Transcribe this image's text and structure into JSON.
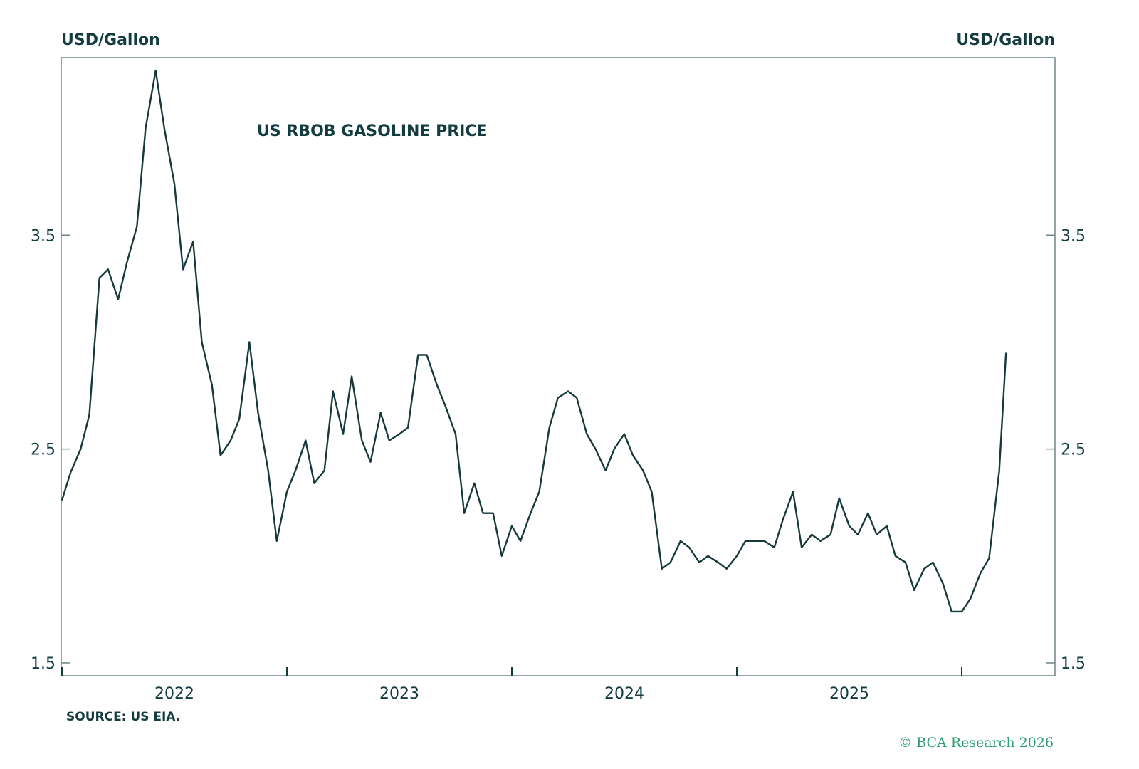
{
  "footer": {
    "source": "SOURCE: US EIA.",
    "copyright": "© BCA Research 2026"
  },
  "chart_data": {
    "type": "line",
    "title": "US RBOB GASOLINE PRICE",
    "ylabel_left": "USD/Gallon",
    "ylabel_right": "USD/Gallon",
    "xlabel": "",
    "ylim": [
      1.44,
      4.33
    ],
    "yticks": [
      1.5,
      2.5,
      3.5
    ],
    "ytick_labels": [
      "1.5",
      "2.5",
      "3.5"
    ],
    "xticks": [
      "2022",
      "2023",
      "2024",
      "2025"
    ],
    "grid": false,
    "line_color": "#163a3c",
    "series": [
      {
        "dates": [
          "2022-01-01",
          "2022-01-15",
          "2022-02-01",
          "2022-02-15",
          "2022-03-01",
          "2022-03-15",
          "2022-04-01",
          "2022-04-15",
          "2022-05-01",
          "2022-05-15",
          "2022-06-01",
          "2022-06-15",
          "2022-07-01",
          "2022-07-15",
          "2022-08-01",
          "2022-08-15",
          "2022-09-01",
          "2022-09-15",
          "2022-10-01",
          "2022-10-15",
          "2022-11-01",
          "2022-11-15",
          "2022-12-01",
          "2022-12-15",
          "2023-01-01",
          "2023-01-15",
          "2023-02-01",
          "2023-02-15",
          "2023-03-01",
          "2023-03-15",
          "2023-04-01",
          "2023-04-15",
          "2023-05-01",
          "2023-05-15",
          "2023-06-01",
          "2023-06-15",
          "2023-07-01",
          "2023-07-15",
          "2023-08-01",
          "2023-08-15",
          "2023-09-01",
          "2023-09-15",
          "2023-10-01",
          "2023-10-15",
          "2023-11-01",
          "2023-11-15",
          "2023-12-01",
          "2023-12-15",
          "2024-01-01",
          "2024-01-15",
          "2024-02-01",
          "2024-02-15",
          "2024-03-01",
          "2024-03-15",
          "2024-04-01",
          "2024-04-15",
          "2024-05-01",
          "2024-05-15",
          "2024-06-01",
          "2024-06-15",
          "2024-07-01",
          "2024-07-15",
          "2024-08-01",
          "2024-08-15",
          "2024-09-01",
          "2024-09-15",
          "2024-10-01",
          "2024-10-15",
          "2024-11-01",
          "2024-11-15",
          "2024-12-01",
          "2024-12-15",
          "2025-01-01",
          "2025-01-15",
          "2025-02-01",
          "2025-02-15",
          "2025-03-01",
          "2025-03-15",
          "2025-04-01",
          "2025-04-15",
          "2025-05-01",
          "2025-05-15",
          "2025-06-01",
          "2025-06-15",
          "2025-07-01",
          "2025-07-15",
          "2025-08-01",
          "2025-08-15",
          "2025-09-01",
          "2025-09-15",
          "2025-10-01",
          "2025-10-15",
          "2025-11-01",
          "2025-11-15",
          "2025-12-01",
          "2025-12-15",
          "2026-01-01",
          "2026-01-15",
          "2026-02-01",
          "2026-02-15",
          "2026-03-01",
          "2026-03-12"
        ],
        "values": [
          2.26,
          2.39,
          2.5,
          2.66,
          3.3,
          3.34,
          3.2,
          3.37,
          3.54,
          4.0,
          4.27,
          4.0,
          3.74,
          3.34,
          3.47,
          3.0,
          2.8,
          2.47,
          2.54,
          2.64,
          3.0,
          2.67,
          2.4,
          2.07,
          2.3,
          2.4,
          2.54,
          2.34,
          2.4,
          2.77,
          2.57,
          2.84,
          2.54,
          2.44,
          2.67,
          2.54,
          2.57,
          2.6,
          2.94,
          2.94,
          2.8,
          2.7,
          2.57,
          2.2,
          2.34,
          2.2,
          2.2,
          2.0,
          2.14,
          2.07,
          2.2,
          2.3,
          2.6,
          2.74,
          2.77,
          2.74,
          2.57,
          2.5,
          2.4,
          2.5,
          2.57,
          2.47,
          2.4,
          2.3,
          1.94,
          1.97,
          2.07,
          2.04,
          1.97,
          2.0,
          1.97,
          1.94,
          2.0,
          2.07,
          2.07,
          2.07,
          2.04,
          2.17,
          2.3,
          2.04,
          2.1,
          2.07,
          2.1,
          2.27,
          2.14,
          2.1,
          2.2,
          2.1,
          2.14,
          2.0,
          1.97,
          1.84,
          1.94,
          1.97,
          1.87,
          1.74,
          1.74,
          1.8,
          1.92,
          1.99,
          2.4,
          2.95
        ]
      }
    ]
  }
}
